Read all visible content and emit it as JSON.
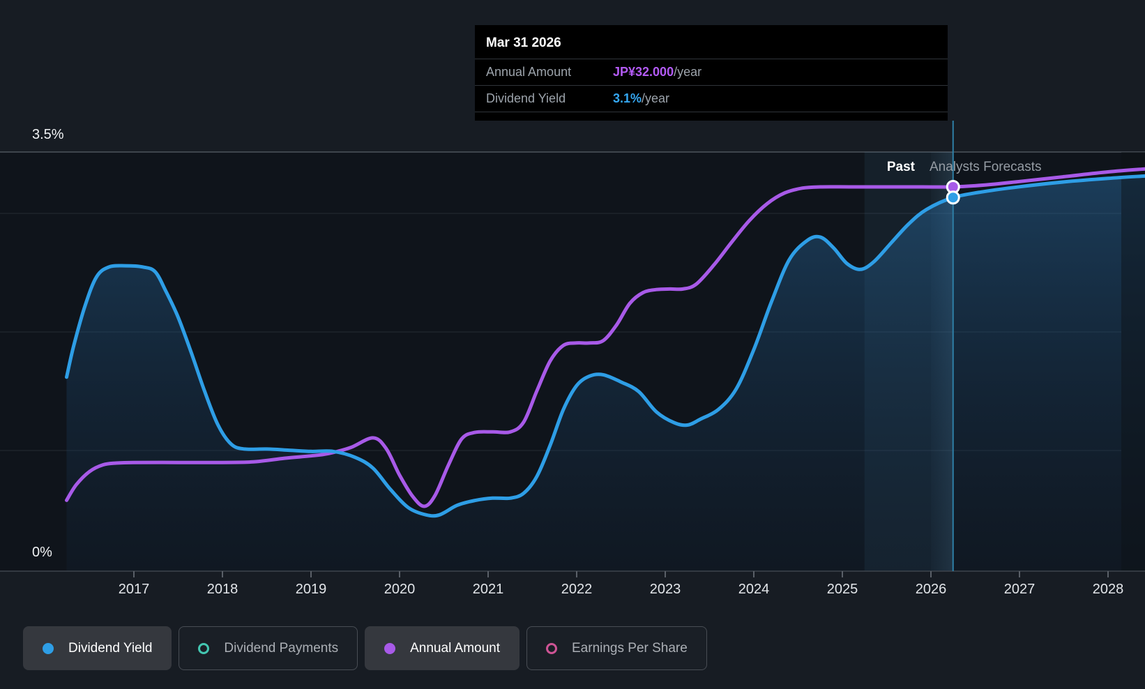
{
  "page": {
    "background": "#171C23",
    "plot_background": "#0F141B"
  },
  "tooltip": {
    "date": "Mar 31 2026",
    "rows": [
      {
        "label": "Annual Amount",
        "value": "JP¥32.000",
        "suffix": "/year",
        "value_color": "#B35BF5"
      },
      {
        "label": "Dividend Yield",
        "value": "3.1%",
        "suffix": "/year",
        "value_color": "#35A7F2"
      }
    ]
  },
  "axis_labels": {
    "y_max": "3.5%",
    "y_min": "0%"
  },
  "region_labels": {
    "past": "Past",
    "forecast": "Analysts Forecasts"
  },
  "legend": [
    {
      "label": "Dividend Yield",
      "color": "#2E9EE6",
      "marker": "filled",
      "active": true
    },
    {
      "label": "Dividend Payments",
      "color": "#43C6B1",
      "marker": "outline",
      "active": false
    },
    {
      "label": "Annual Amount",
      "color": "#A85AE8",
      "marker": "filled",
      "active": true
    },
    {
      "label": "Earnings Per Share",
      "color": "#CE5495",
      "marker": "outline",
      "active": false
    }
  ],
  "chart_data": {
    "type": "line",
    "x_ticks": [
      "2017",
      "2018",
      "2019",
      "2020",
      "2021",
      "2022",
      "2023",
      "2024",
      "2025",
      "2026",
      "2027",
      "2028"
    ],
    "x_range": [
      2016.24,
      2028.42
    ],
    "y_axis": {
      "min": 0,
      "max": 3.5,
      "unit": "%",
      "tick_labels": [
        "0%",
        "3.5%"
      ],
      "grid": "horizontal"
    },
    "legend_position": "bottom",
    "forecast_start_t": 2026.0,
    "hover": {
      "t": 2026.25,
      "date": "Mar 31 2026",
      "annual_amount": 32.0,
      "dividend_yield_pct": 3.1
    },
    "highlight_band_t": [
      2025.25,
      2026.25
    ],
    "series": [
      {
        "name": "Dividend Yield",
        "unit": "%",
        "color": "#2E9EE6",
        "style": "area",
        "points": [
          [
            2016.24,
            1.62
          ],
          [
            2016.32,
            1.88
          ],
          [
            2016.45,
            2.22
          ],
          [
            2016.58,
            2.46
          ],
          [
            2016.72,
            2.54
          ],
          [
            2016.9,
            2.55
          ],
          [
            2017.1,
            2.54
          ],
          [
            2017.24,
            2.5
          ],
          [
            2017.36,
            2.34
          ],
          [
            2017.5,
            2.12
          ],
          [
            2017.65,
            1.82
          ],
          [
            2017.8,
            1.5
          ],
          [
            2017.95,
            1.22
          ],
          [
            2018.1,
            1.06
          ],
          [
            2018.25,
            1.02
          ],
          [
            2018.5,
            1.02
          ],
          [
            2018.75,
            1.01
          ],
          [
            2019.0,
            1.0
          ],
          [
            2019.25,
            1.0
          ],
          [
            2019.5,
            0.95
          ],
          [
            2019.7,
            0.86
          ],
          [
            2019.9,
            0.68
          ],
          [
            2020.1,
            0.53
          ],
          [
            2020.3,
            0.47
          ],
          [
            2020.45,
            0.47
          ],
          [
            2020.65,
            0.55
          ],
          [
            2020.85,
            0.59
          ],
          [
            2021.05,
            0.61
          ],
          [
            2021.25,
            0.61
          ],
          [
            2021.4,
            0.65
          ],
          [
            2021.55,
            0.79
          ],
          [
            2021.7,
            1.05
          ],
          [
            2021.85,
            1.35
          ],
          [
            2022.0,
            1.55
          ],
          [
            2022.15,
            1.63
          ],
          [
            2022.3,
            1.64
          ],
          [
            2022.5,
            1.58
          ],
          [
            2022.7,
            1.5
          ],
          [
            2022.9,
            1.33
          ],
          [
            2023.1,
            1.24
          ],
          [
            2023.25,
            1.22
          ],
          [
            2023.4,
            1.27
          ],
          [
            2023.6,
            1.35
          ],
          [
            2023.8,
            1.52
          ],
          [
            2024.0,
            1.85
          ],
          [
            2024.2,
            2.25
          ],
          [
            2024.4,
            2.6
          ],
          [
            2024.6,
            2.76
          ],
          [
            2024.75,
            2.79
          ],
          [
            2024.9,
            2.7
          ],
          [
            2025.05,
            2.57
          ],
          [
            2025.2,
            2.52
          ],
          [
            2025.35,
            2.58
          ],
          [
            2025.55,
            2.74
          ],
          [
            2025.75,
            2.9
          ],
          [
            2025.95,
            3.02
          ],
          [
            2026.25,
            3.12
          ],
          [
            2026.6,
            3.17
          ],
          [
            2027.0,
            3.21
          ],
          [
            2027.5,
            3.25
          ],
          [
            2028.0,
            3.28
          ],
          [
            2028.42,
            3.3
          ]
        ]
      },
      {
        "name": "Annual Amount",
        "unit": "JP¥/year",
        "color": "#A85AE8",
        "style": "line",
        "points": [
          [
            2016.24,
            5.9
          ],
          [
            2016.35,
            7.2
          ],
          [
            2016.5,
            8.3
          ],
          [
            2016.65,
            8.85
          ],
          [
            2016.8,
            9.0
          ],
          [
            2017.0,
            9.05
          ],
          [
            2017.5,
            9.05
          ],
          [
            2018.0,
            9.05
          ],
          [
            2018.35,
            9.1
          ],
          [
            2018.7,
            9.4
          ],
          [
            2019.0,
            9.6
          ],
          [
            2019.2,
            9.8
          ],
          [
            2019.45,
            10.3
          ],
          [
            2019.7,
            11.1
          ],
          [
            2019.85,
            10.2
          ],
          [
            2020.0,
            8.0
          ],
          [
            2020.15,
            6.2
          ],
          [
            2020.28,
            5.4
          ],
          [
            2020.4,
            6.3
          ],
          [
            2020.55,
            8.8
          ],
          [
            2020.7,
            11.0
          ],
          [
            2020.85,
            11.55
          ],
          [
            2021.05,
            11.6
          ],
          [
            2021.25,
            11.6
          ],
          [
            2021.4,
            12.4
          ],
          [
            2021.55,
            15.0
          ],
          [
            2021.7,
            17.5
          ],
          [
            2021.85,
            18.8
          ],
          [
            2022.0,
            19.0
          ],
          [
            2022.15,
            19.0
          ],
          [
            2022.3,
            19.2
          ],
          [
            2022.45,
            20.5
          ],
          [
            2022.6,
            22.3
          ],
          [
            2022.75,
            23.2
          ],
          [
            2022.9,
            23.45
          ],
          [
            2023.05,
            23.5
          ],
          [
            2023.2,
            23.5
          ],
          [
            2023.35,
            23.9
          ],
          [
            2023.55,
            25.5
          ],
          [
            2023.75,
            27.4
          ],
          [
            2023.95,
            29.2
          ],
          [
            2024.15,
            30.6
          ],
          [
            2024.35,
            31.5
          ],
          [
            2024.55,
            31.9
          ],
          [
            2024.75,
            32.0
          ],
          [
            2025.1,
            32.0
          ],
          [
            2025.5,
            32.0
          ],
          [
            2025.9,
            32.0
          ],
          [
            2026.25,
            32.0
          ],
          [
            2026.6,
            32.15
          ],
          [
            2027.0,
            32.45
          ],
          [
            2027.5,
            32.85
          ],
          [
            2028.0,
            33.25
          ],
          [
            2028.42,
            33.5
          ]
        ]
      }
    ]
  }
}
